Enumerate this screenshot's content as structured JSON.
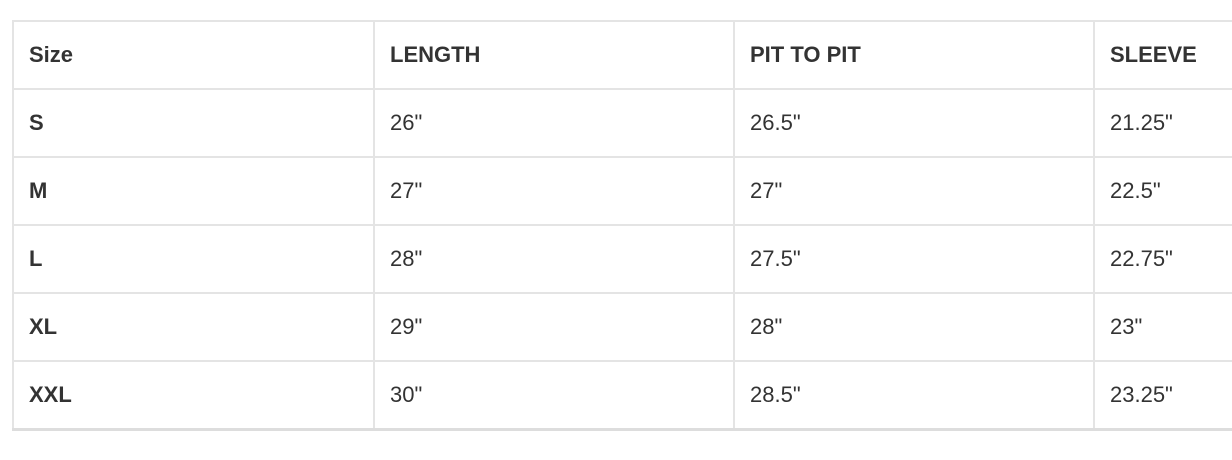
{
  "table": {
    "headers": [
      "Size",
      "LENGTH",
      "PIT TO PIT",
      "SLEEVE"
    ],
    "rows": [
      [
        "S",
        "26\"",
        "26.5\"",
        "21.25\""
      ],
      [
        "M",
        "27\"",
        "27\"",
        "22.5\""
      ],
      [
        "L",
        "28\"",
        "27.5\"",
        "22.75\""
      ],
      [
        "XL",
        "29\"",
        "28\"",
        "23\""
      ],
      [
        "XXL",
        "30\"",
        "28.5\"",
        "23.25\""
      ]
    ]
  }
}
